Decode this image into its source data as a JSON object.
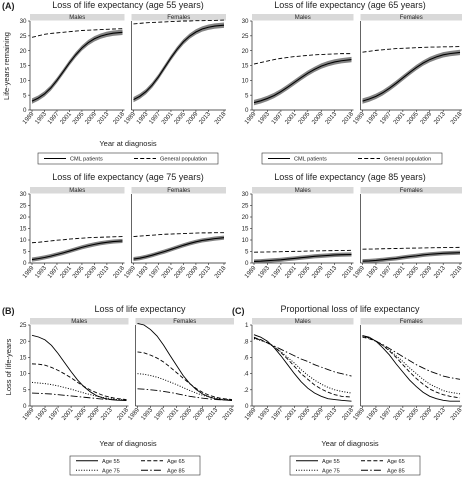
{
  "figure": {
    "section_labels": {
      "A": "(A)",
      "B": "(B)",
      "C": "(C)"
    },
    "colors": {
      "strip": "#d9d9d9",
      "line": "#000000",
      "band": "#6e6e6e",
      "axis": "#222222"
    }
  },
  "chart_data": [
    {
      "id": "A55",
      "section": "A",
      "type": "line",
      "title": "Loss of life expectancy (age 55 years)",
      "facets": [
        "Males",
        "Females"
      ],
      "ylabel": "Life-years remaining",
      "xlabel": "Year at diagnosis",
      "xticks": [
        "1989",
        "1993",
        "1997",
        "2001",
        "2005",
        "2009",
        "2013",
        "2018"
      ],
      "ylim": [
        0,
        30
      ],
      "yticks": [
        0,
        5,
        10,
        15,
        20,
        25,
        30
      ],
      "x": [
        1989,
        1991,
        1993,
        1995,
        1997,
        1999,
        2001,
        2003,
        2005,
        2007,
        2009,
        2011,
        2013,
        2015,
        2018
      ],
      "series": [
        {
          "name": "CML patients",
          "style": "solid-band",
          "facet": "Males",
          "values": [
            3.0,
            4.0,
            5.4,
            7.4,
            10.0,
            12.9,
            15.9,
            18.6,
            20.9,
            22.7,
            24.0,
            24.9,
            25.5,
            25.9,
            26.2
          ]
        },
        {
          "name": "General population",
          "style": "dashed",
          "facet": "Males",
          "values": [
            24.5,
            25.0,
            25.5,
            25.8,
            26.0,
            26.2,
            26.4,
            26.6,
            26.8,
            26.9,
            27.0,
            27.1,
            27.2,
            27.3,
            27.4
          ]
        },
        {
          "name": "CML patients",
          "style": "solid-band",
          "facet": "Females",
          "values": [
            3.5,
            4.6,
            6.2,
            8.4,
            11.2,
            14.4,
            17.6,
            20.5,
            23.0,
            24.9,
            26.3,
            27.3,
            27.9,
            28.3,
            28.6
          ]
        },
        {
          "name": "General population",
          "style": "dashed",
          "facet": "Females",
          "values": [
            29.0,
            29.2,
            29.4,
            29.5,
            29.6,
            29.7,
            29.8,
            29.9,
            30.0,
            30.0,
            30.1,
            30.1,
            30.2,
            30.2,
            30.3
          ]
        }
      ],
      "legend": [
        "CML patients",
        "General population"
      ]
    },
    {
      "id": "A65",
      "section": "A",
      "type": "line",
      "title": "Loss of life expectancy (age 65 years)",
      "facets": [
        "Males",
        "Females"
      ],
      "ylabel": "",
      "xlabel": "",
      "xticks": [
        "1989",
        "1993",
        "1997",
        "2001",
        "2005",
        "2009",
        "2013",
        "2018"
      ],
      "ylim": [
        0,
        30
      ],
      "yticks": [
        0,
        5,
        10,
        15,
        20,
        25,
        30
      ],
      "x": [
        1989,
        1991,
        1993,
        1995,
        1997,
        1999,
        2001,
        2003,
        2005,
        2007,
        2009,
        2011,
        2013,
        2015,
        2018
      ],
      "series": [
        {
          "name": "CML patients",
          "style": "solid-band",
          "facet": "Males",
          "values": [
            2.5,
            3.1,
            3.9,
            4.9,
            6.2,
            7.7,
            9.3,
            10.9,
            12.4,
            13.7,
            14.8,
            15.6,
            16.2,
            16.6,
            17.0
          ]
        },
        {
          "name": "General population",
          "style": "dashed",
          "facet": "Males",
          "values": [
            15.5,
            16.0,
            16.5,
            17.0,
            17.4,
            17.7,
            18.0,
            18.2,
            18.4,
            18.6,
            18.7,
            18.8,
            18.9,
            19.0,
            19.0
          ]
        },
        {
          "name": "CML patients",
          "style": "solid-band",
          "facet": "Females",
          "values": [
            3.0,
            3.7,
            4.6,
            5.8,
            7.3,
            9.0,
            10.8,
            12.6,
            14.3,
            15.8,
            17.0,
            17.9,
            18.6,
            19.0,
            19.4
          ]
        },
        {
          "name": "General population",
          "style": "dashed",
          "facet": "Females",
          "values": [
            19.5,
            19.8,
            20.1,
            20.3,
            20.5,
            20.7,
            20.8,
            20.9,
            21.0,
            21.1,
            21.2,
            21.2,
            21.3,
            21.3,
            21.4
          ]
        }
      ],
      "legend": [
        "CML patients",
        "General population"
      ]
    },
    {
      "id": "A75",
      "section": "A",
      "type": "line",
      "title": "Loss of life expectancy (age 75 years)",
      "facets": [
        "Males",
        "Females"
      ],
      "ylabel": "",
      "xlabel": "",
      "xticks": [
        "1989",
        "1993",
        "1997",
        "2001",
        "2005",
        "2009",
        "2013",
        "2018"
      ],
      "ylim": [
        0,
        30
      ],
      "yticks": [
        0,
        5,
        10,
        15,
        20,
        25,
        30
      ],
      "x": [
        1989,
        1991,
        1993,
        1995,
        1997,
        1999,
        2001,
        2003,
        2005,
        2007,
        2009,
        2011,
        2013,
        2015,
        2018
      ],
      "series": [
        {
          "name": "CML patients",
          "style": "solid-band",
          "facet": "Males",
          "values": [
            1.5,
            1.9,
            2.4,
            3.0,
            3.7,
            4.4,
            5.2,
            6.0,
            6.8,
            7.5,
            8.1,
            8.6,
            9.0,
            9.3,
            9.6
          ]
        },
        {
          "name": "General population",
          "style": "dashed",
          "facet": "Males",
          "values": [
            8.8,
            9.0,
            9.3,
            9.6,
            9.9,
            10.1,
            10.4,
            10.6,
            10.8,
            11.0,
            11.1,
            11.2,
            11.3,
            11.4,
            11.5
          ]
        },
        {
          "name": "CML patients",
          "style": "solid-band",
          "facet": "Females",
          "values": [
            1.7,
            2.1,
            2.7,
            3.4,
            4.2,
            5.0,
            5.9,
            6.8,
            7.7,
            8.5,
            9.2,
            9.8,
            10.2,
            10.6,
            11.0
          ]
        },
        {
          "name": "General population",
          "style": "dashed",
          "facet": "Females",
          "values": [
            11.5,
            11.7,
            11.9,
            12.1,
            12.3,
            12.5,
            12.6,
            12.7,
            12.8,
            12.9,
            13.0,
            13.1,
            13.1,
            13.2,
            13.2
          ]
        }
      ],
      "legend": []
    },
    {
      "id": "A85",
      "section": "A",
      "type": "line",
      "title": "Loss of life expectancy (age 85 years)",
      "facets": [
        "Males",
        "Females"
      ],
      "ylabel": "",
      "xlabel": "",
      "xticks": [
        "1989",
        "1993",
        "1997",
        "2001",
        "2005",
        "2009",
        "2013",
        "2018"
      ],
      "ylim": [
        0,
        30
      ],
      "yticks": [
        0,
        5,
        10,
        15,
        20,
        25,
        30
      ],
      "x": [
        1989,
        1991,
        1993,
        1995,
        1997,
        1999,
        2001,
        2003,
        2005,
        2007,
        2009,
        2011,
        2013,
        2015,
        2018
      ],
      "series": [
        {
          "name": "CML patients",
          "style": "solid-band",
          "facet": "Males",
          "values": [
            0.7,
            0.8,
            1.0,
            1.2,
            1.4,
            1.7,
            2.0,
            2.3,
            2.6,
            2.9,
            3.1,
            3.3,
            3.5,
            3.6,
            3.7
          ]
        },
        {
          "name": "General population",
          "style": "dashed",
          "facet": "Males",
          "values": [
            4.7,
            4.75,
            4.8,
            4.85,
            4.9,
            5.0,
            5.05,
            5.1,
            5.2,
            5.25,
            5.3,
            5.35,
            5.4,
            5.45,
            5.5
          ]
        },
        {
          "name": "CML patients",
          "style": "solid-band",
          "facet": "Females",
          "values": [
            0.8,
            0.9,
            1.1,
            1.4,
            1.7,
            2.0,
            2.4,
            2.8,
            3.1,
            3.5,
            3.8,
            4.0,
            4.2,
            4.3,
            4.5
          ]
        },
        {
          "name": "General population",
          "style": "dashed",
          "facet": "Females",
          "values": [
            6.0,
            6.05,
            6.1,
            6.2,
            6.25,
            6.3,
            6.4,
            6.45,
            6.5,
            6.55,
            6.6,
            6.65,
            6.7,
            6.75,
            6.8
          ]
        }
      ],
      "legend": []
    },
    {
      "id": "B",
      "section": "B",
      "type": "line",
      "title": "Loss of life expectancy",
      "facets": [
        "Males",
        "Females"
      ],
      "ylabel": "Loss of life-years",
      "xlabel": "Year of diagnosis",
      "xticks": [
        "1989",
        "1993",
        "1997",
        "2001",
        "2005",
        "2009",
        "2013",
        "2018"
      ],
      "ylim": [
        0,
        25
      ],
      "yticks": [
        0,
        5,
        10,
        15,
        20,
        25
      ],
      "x": [
        1989,
        1991,
        1993,
        1995,
        1997,
        1999,
        2001,
        2003,
        2005,
        2007,
        2009,
        2011,
        2013,
        2015,
        2018
      ],
      "series": [
        {
          "name": "Age 55",
          "style": "solid",
          "facet": "Males",
          "values": [
            21.8,
            21.3,
            20.4,
            18.7,
            16.2,
            13.4,
            10.6,
            8.0,
            5.9,
            4.3,
            3.1,
            2.4,
            2.0,
            1.8,
            1.7
          ]
        },
        {
          "name": "Age 65",
          "style": "dashed",
          "facet": "Males",
          "values": [
            13.0,
            12.9,
            12.6,
            11.9,
            11.0,
            9.9,
            8.7,
            7.3,
            6.0,
            4.9,
            4.0,
            3.2,
            2.7,
            2.3,
            2.0
          ]
        },
        {
          "name": "Age 75",
          "style": "dotted",
          "facet": "Males",
          "values": [
            7.3,
            7.1,
            6.9,
            6.6,
            6.2,
            5.7,
            5.2,
            4.6,
            4.0,
            3.5,
            3.0,
            2.6,
            2.3,
            2.0,
            1.9
          ]
        },
        {
          "name": "Age 85",
          "style": "longdash",
          "facet": "Males",
          "values": [
            4.0,
            3.9,
            3.8,
            3.7,
            3.5,
            3.3,
            3.1,
            2.9,
            2.7,
            2.5,
            2.3,
            2.1,
            2.0,
            1.9,
            1.8
          ]
        },
        {
          "name": "Age 55",
          "style": "solid",
          "facet": "Females",
          "values": [
            25.5,
            25.0,
            23.6,
            21.6,
            18.8,
            15.6,
            12.5,
            9.4,
            7.0,
            5.1,
            3.7,
            2.8,
            2.2,
            1.9,
            1.7
          ]
        },
        {
          "name": "Age 65",
          "style": "dashed",
          "facet": "Females",
          "values": [
            16.7,
            16.4,
            15.7,
            14.8,
            13.6,
            12.0,
            10.3,
            8.6,
            6.9,
            5.4,
            4.2,
            3.3,
            2.7,
            2.3,
            2.0
          ]
        },
        {
          "name": "Age 75",
          "style": "dotted",
          "facet": "Females",
          "values": [
            10.0,
            9.8,
            9.4,
            8.9,
            8.2,
            7.4,
            6.6,
            5.7,
            4.8,
            4.0,
            3.3,
            2.8,
            2.4,
            2.1,
            1.9
          ]
        },
        {
          "name": "Age 85",
          "style": "longdash",
          "facet": "Females",
          "values": [
            5.3,
            5.2,
            5.0,
            4.8,
            4.5,
            4.2,
            3.8,
            3.4,
            3.0,
            2.7,
            2.4,
            2.2,
            2.0,
            1.9,
            1.8
          ]
        }
      ],
      "legend": [
        "Age 55",
        "Age 65",
        "Age 75",
        "Age 85"
      ]
    },
    {
      "id": "C",
      "section": "C",
      "type": "line",
      "title": "Proportional loss of life expectancy",
      "facets": [
        "Males",
        "Females"
      ],
      "ylabel": "",
      "xlabel": "Year of diagnosis",
      "xticks": [
        "1989",
        "1993",
        "1997",
        "2001",
        "2005",
        "2009",
        "2013",
        "2018"
      ],
      "ylim": [
        0,
        1
      ],
      "yticks": [
        0,
        0.2,
        0.4,
        0.6,
        0.8,
        1
      ],
      "ytick_labels": [
        "0",
        ".2",
        ".4",
        ".6",
        ".8",
        "1"
      ],
      "x": [
        1989,
        1991,
        1993,
        1995,
        1997,
        1999,
        2001,
        2003,
        2005,
        2007,
        2009,
        2011,
        2013,
        2015,
        2018
      ],
      "series": [
        {
          "name": "Age 55",
          "style": "solid",
          "facet": "Males",
          "values": [
            0.88,
            0.85,
            0.8,
            0.72,
            0.62,
            0.51,
            0.4,
            0.3,
            0.22,
            0.16,
            0.12,
            0.09,
            0.08,
            0.07,
            0.06
          ]
        },
        {
          "name": "Age 65",
          "style": "dashed",
          "facet": "Males",
          "values": [
            0.84,
            0.82,
            0.78,
            0.73,
            0.66,
            0.58,
            0.49,
            0.4,
            0.33,
            0.26,
            0.21,
            0.17,
            0.14,
            0.12,
            0.11
          ]
        },
        {
          "name": "Age 75",
          "style": "dotted",
          "facet": "Males",
          "values": [
            0.83,
            0.81,
            0.78,
            0.73,
            0.67,
            0.6,
            0.53,
            0.45,
            0.38,
            0.32,
            0.27,
            0.23,
            0.2,
            0.18,
            0.16
          ]
        },
        {
          "name": "Age 85",
          "style": "longdash",
          "facet": "Males",
          "values": [
            0.85,
            0.81,
            0.78,
            0.74,
            0.7,
            0.66,
            0.62,
            0.58,
            0.55,
            0.51,
            0.48,
            0.45,
            0.42,
            0.4,
            0.37
          ]
        },
        {
          "name": "Age 55",
          "style": "solid",
          "facet": "Females",
          "values": [
            0.87,
            0.85,
            0.8,
            0.72,
            0.63,
            0.52,
            0.42,
            0.32,
            0.24,
            0.17,
            0.12,
            0.09,
            0.07,
            0.06,
            0.06
          ]
        },
        {
          "name": "Age 65",
          "style": "dashed",
          "facet": "Females",
          "values": [
            0.85,
            0.83,
            0.8,
            0.75,
            0.68,
            0.6,
            0.51,
            0.42,
            0.34,
            0.27,
            0.21,
            0.17,
            0.14,
            0.12,
            0.1
          ]
        },
        {
          "name": "Age 75",
          "style": "dotted",
          "facet": "Females",
          "values": [
            0.86,
            0.84,
            0.8,
            0.75,
            0.69,
            0.62,
            0.55,
            0.47,
            0.4,
            0.33,
            0.27,
            0.23,
            0.19,
            0.17,
            0.15
          ]
        },
        {
          "name": "Age 85",
          "style": "longdash",
          "facet": "Females",
          "values": [
            0.87,
            0.84,
            0.8,
            0.76,
            0.71,
            0.66,
            0.61,
            0.56,
            0.51,
            0.47,
            0.43,
            0.4,
            0.37,
            0.35,
            0.33
          ]
        }
      ],
      "legend": [
        "Age 55",
        "Age 65",
        "Age 75",
        "Age 85"
      ]
    }
  ]
}
